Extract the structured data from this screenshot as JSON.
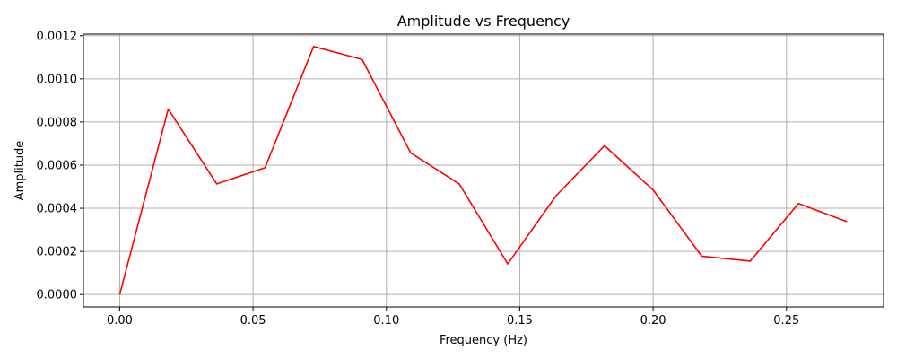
{
  "chart_data": {
    "type": "line",
    "title": "Amplitude vs Frequency",
    "xlabel": "Frequency (Hz)",
    "ylabel": "Amplitude",
    "xlim": [
      -0.0136,
      0.2864
    ],
    "ylim": [
      -5.75e-05,
      0.0012075
    ],
    "xticks": [
      0.0,
      0.05,
      0.1,
      0.15,
      0.2,
      0.25
    ],
    "xtick_labels": [
      "0.00",
      "0.05",
      "0.10",
      "0.15",
      "0.20",
      "0.25"
    ],
    "yticks": [
      0.0,
      0.0002,
      0.0004,
      0.0006,
      0.0008,
      0.001,
      0.0012
    ],
    "ytick_labels": [
      "0.0000",
      "0.0002",
      "0.0004",
      "0.0006",
      "0.0008",
      "0.0010",
      "0.0012"
    ],
    "grid": true,
    "legend": "none",
    "series": [
      {
        "color": "#ff0000",
        "x": [
          0.0,
          0.0182,
          0.0364,
          0.0545,
          0.0727,
          0.0909,
          0.1091,
          0.1273,
          0.1455,
          0.1636,
          0.1818,
          0.2,
          0.2182,
          0.2364,
          0.2545,
          0.2727
        ],
        "y": [
          0.0,
          0.00086,
          0.000513,
          0.000588,
          0.00115,
          0.00109,
          0.000657,
          0.000513,
          0.000142,
          0.000458,
          0.00069,
          0.000485,
          0.000178,
          0.000155,
          0.000422,
          0.000338
        ]
      }
    ]
  }
}
